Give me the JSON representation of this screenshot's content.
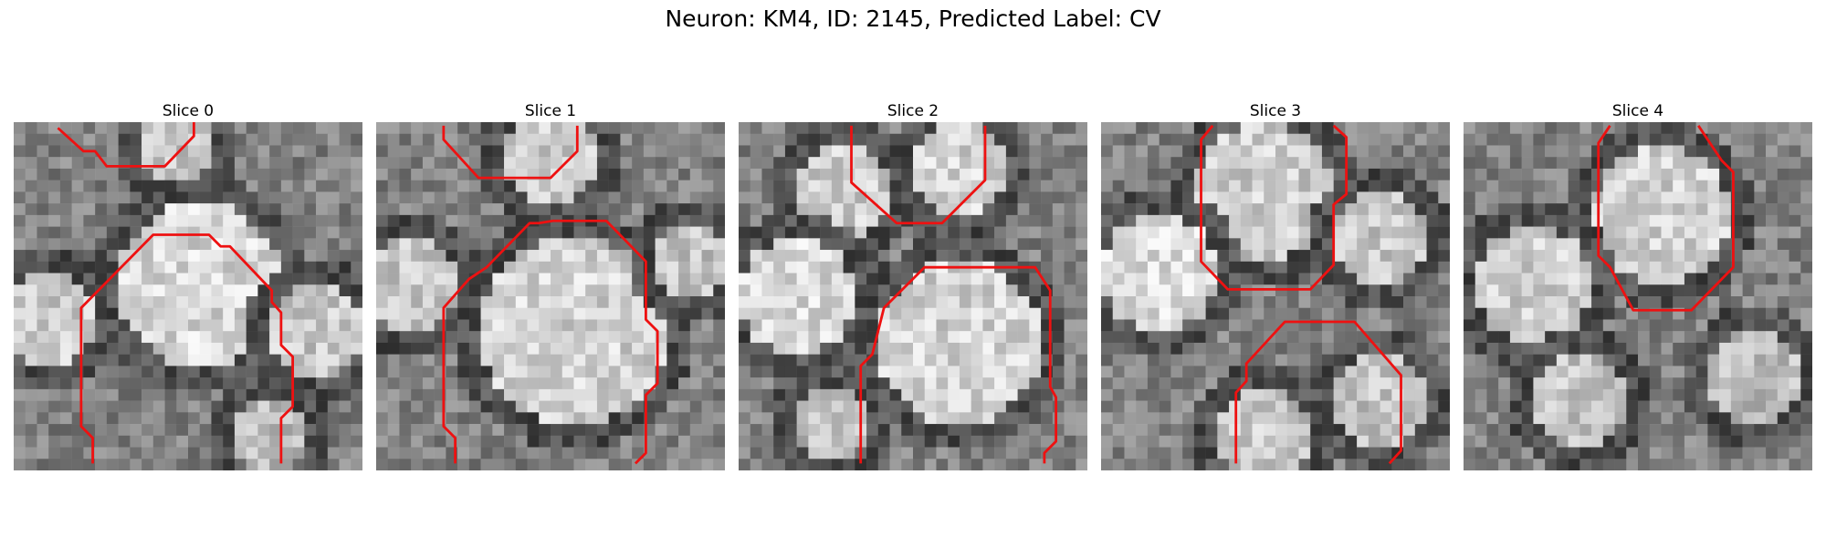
{
  "figure": {
    "title": "Neuron: KM4, ID: 2145, Predicted Label: CV"
  },
  "panels": [
    {
      "title": "Slice 0"
    },
    {
      "title": "Slice 1"
    },
    {
      "title": "Slice 2"
    },
    {
      "title": "Slice 3"
    },
    {
      "title": "Slice 4"
    }
  ],
  "colors": {
    "contour": "#ee1111",
    "background": "#ffffff"
  }
}
